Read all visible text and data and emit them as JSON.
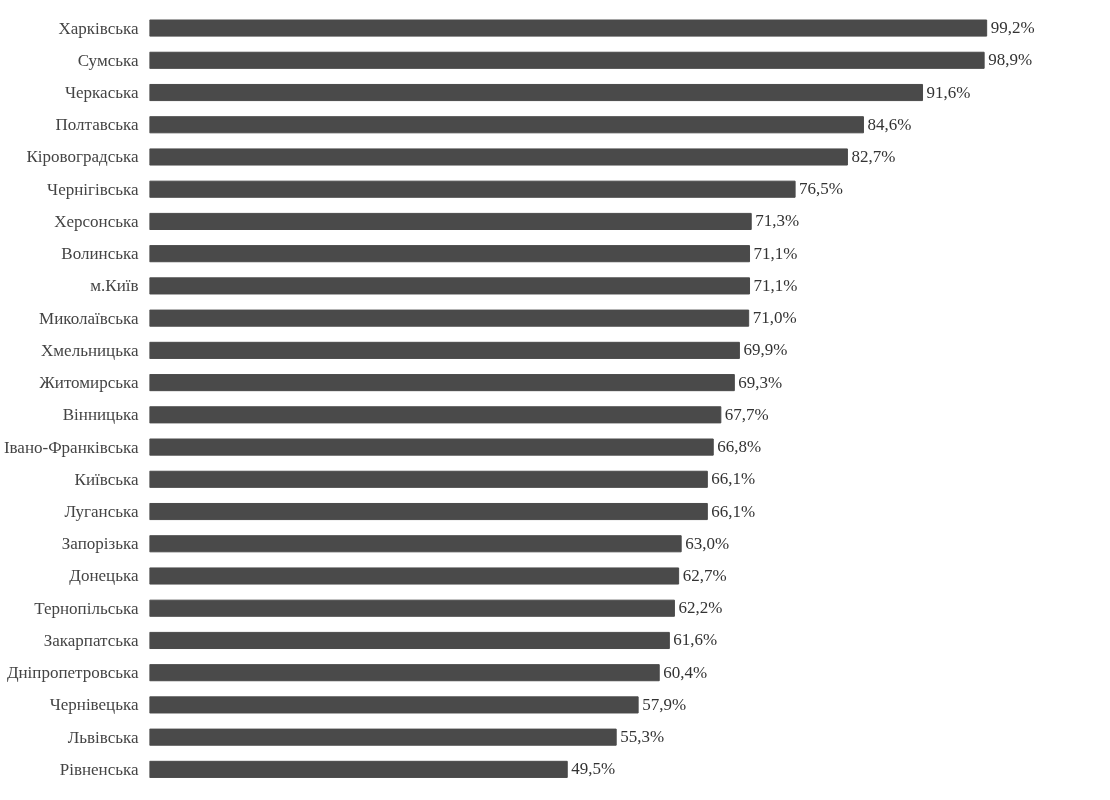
{
  "chart_data": {
    "type": "bar",
    "orientation": "horizontal",
    "tick_labels": "y",
    "color": "#4a4a4a",
    "categories": [
      "Харківська",
      "Сумська",
      "Черкаська",
      "Полтавська",
      "Кіровоградська",
      "Чернігівська",
      "Херсонська",
      "Волинська",
      "м.Київ",
      "Миколаївська",
      "Хмельницька",
      "Житомирська",
      "Вінницька",
      "Івано-Франківська",
      "Київська",
      "Луганська",
      "Запорізька",
      "Донецька",
      "Тернопільська",
      "Закарпатська",
      "Дніпропетровська",
      "Чернівецька",
      "Львівська",
      "Рівненська"
    ],
    "values": [
      99.2,
      98.9,
      91.6,
      84.6,
      82.7,
      76.5,
      71.3,
      71.1,
      71.1,
      71.0,
      69.9,
      69.3,
      67.7,
      66.8,
      66.1,
      66.1,
      63.0,
      62.7,
      62.2,
      61.6,
      60.4,
      57.9,
      55.3,
      49.5
    ],
    "value_labels": [
      "99,2%",
      "98,9%",
      "91,6%",
      "84,6%",
      "82,7%",
      "76,5%",
      "71,3%",
      "71,1%",
      "71,1%",
      "71,0%",
      "69,9%",
      "69,3%",
      "67,7%",
      "66,8%",
      "66,1%",
      "66,1%",
      "63,0%",
      "62,7%",
      "62,2%",
      "61,6%",
      "60,4%",
      "57,9%",
      "55,3%",
      "49,5%"
    ]
  }
}
